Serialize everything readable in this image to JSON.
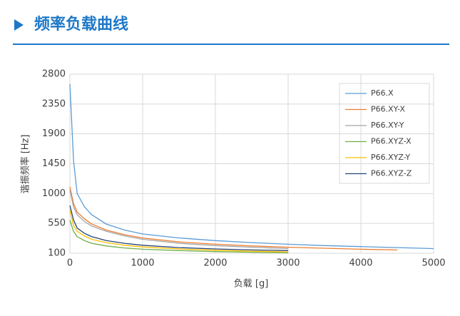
{
  "header": {
    "title": "频率负载曲线"
  },
  "chart_data": {
    "type": "line",
    "xlabel": "负载 [g]",
    "ylabel": "谐振频率 [Hz]",
    "xlim": [
      0,
      5000
    ],
    "xticks": [
      0,
      1000,
      2000,
      3000,
      4000,
      5000
    ],
    "ylim": [
      100,
      2800
    ],
    "yticks": [
      100,
      550,
      1000,
      1450,
      1900,
      2350,
      2800
    ],
    "grid": true,
    "legend": "upper right",
    "series": [
      {
        "name": "P66.X",
        "color": "#5b9bd5",
        "x": [
          0,
          50,
          100,
          200,
          300,
          500,
          750,
          1000,
          1500,
          2000,
          2500,
          3000,
          3500,
          4000,
          4500,
          5000
        ],
        "values": [
          2650,
          1500,
          1000,
          800,
          680,
          540,
          450,
          390,
          330,
          290,
          260,
          235,
          215,
          200,
          185,
          170
        ]
      },
      {
        "name": "P66.XY-X",
        "color": "#ed7d31",
        "x": [
          0,
          50,
          100,
          200,
          300,
          500,
          750,
          1000,
          1500,
          2000,
          2500,
          3000,
          3500,
          4000,
          4500
        ],
        "values": [
          1100,
          850,
          720,
          620,
          540,
          450,
          380,
          330,
          270,
          235,
          210,
          190,
          175,
          160,
          150
        ]
      },
      {
        "name": "P66.XY-Y",
        "color": "#a5a5a5",
        "x": [
          0,
          50,
          100,
          200,
          300,
          500,
          750,
          1000,
          1500,
          2000,
          2500,
          3000
        ],
        "values": [
          1050,
          800,
          680,
          580,
          510,
          430,
          360,
          310,
          250,
          215,
          190,
          170
        ]
      },
      {
        "name": "P66.XYZ-X",
        "color": "#70ad47",
        "x": [
          0,
          50,
          100,
          200,
          300,
          500,
          750,
          1000,
          1500,
          2000,
          2500,
          3000
        ],
        "values": [
          600,
          430,
          350,
          290,
          250,
          210,
          180,
          160,
          140,
          125,
          115,
          105
        ]
      },
      {
        "name": "P66.XYZ-Y",
        "color": "#ffc000",
        "x": [
          0,
          50,
          100,
          200,
          300,
          500,
          750,
          1000,
          1500,
          2000,
          2500,
          3000
        ],
        "values": [
          750,
          520,
          430,
          360,
          310,
          260,
          220,
          195,
          165,
          145,
          130,
          120
        ]
      },
      {
        "name": "P66.XYZ-Z",
        "color": "#264478",
        "x": [
          0,
          50,
          100,
          200,
          300,
          500,
          750,
          1000,
          1500,
          2000,
          2500,
          3000
        ],
        "values": [
          820,
          600,
          480,
          400,
          350,
          290,
          250,
          220,
          185,
          165,
          150,
          140
        ]
      }
    ]
  }
}
